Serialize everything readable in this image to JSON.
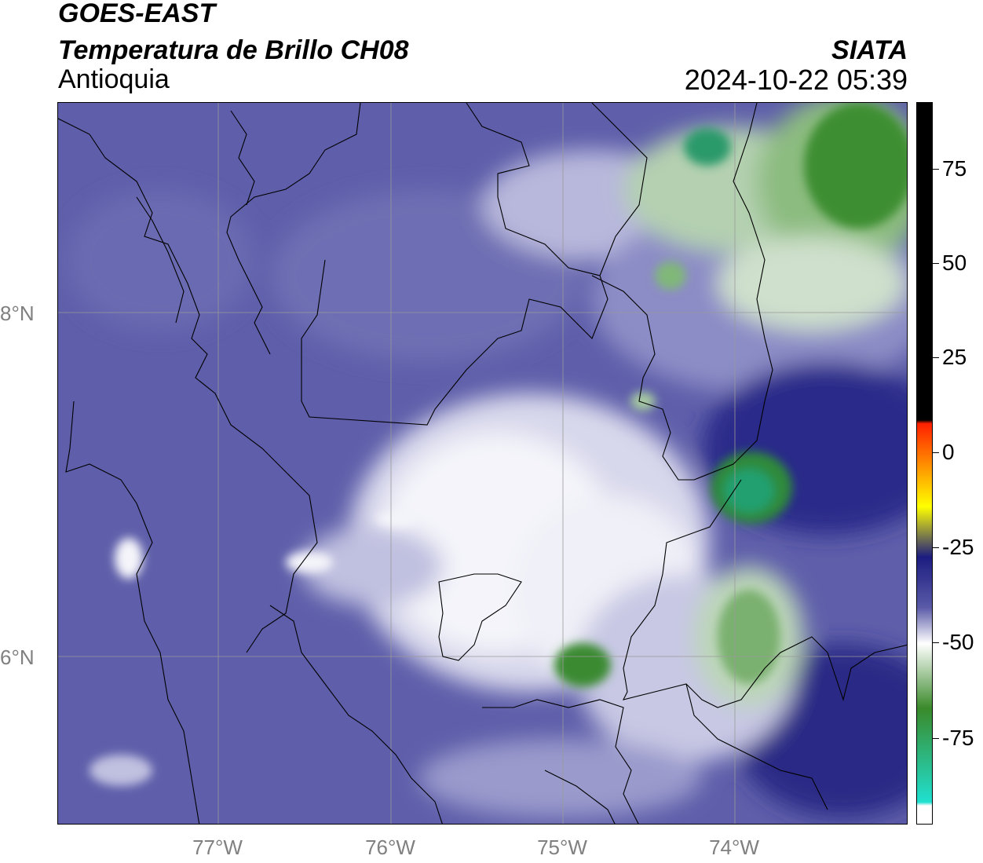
{
  "header": {
    "satellite": "GOES-EAST",
    "product": "Temperatura de Brillo CH08",
    "region": "Antioquia",
    "organization": "SIATA",
    "timestamp": "2024-10-22 05:39"
  },
  "map": {
    "lat_labels": [
      "8°N",
      "6°N"
    ],
    "lon_labels": [
      "77°W",
      "76°W",
      "75°W",
      "74°W"
    ]
  },
  "colorbar": {
    "tick_labels": [
      "75",
      "50",
      "25",
      "0",
      "-25",
      "-50",
      "-75"
    ],
    "colors": {
      "hot": "#000000",
      "warm_red": "#ff2000",
      "warm_yellow": "#ffff00",
      "mid_navy": "#1c1c80",
      "blue": "#5a5aa8",
      "white": "#ffffff",
      "green": "#3a8a2a",
      "cold_cyan": "#20e0d0"
    }
  }
}
